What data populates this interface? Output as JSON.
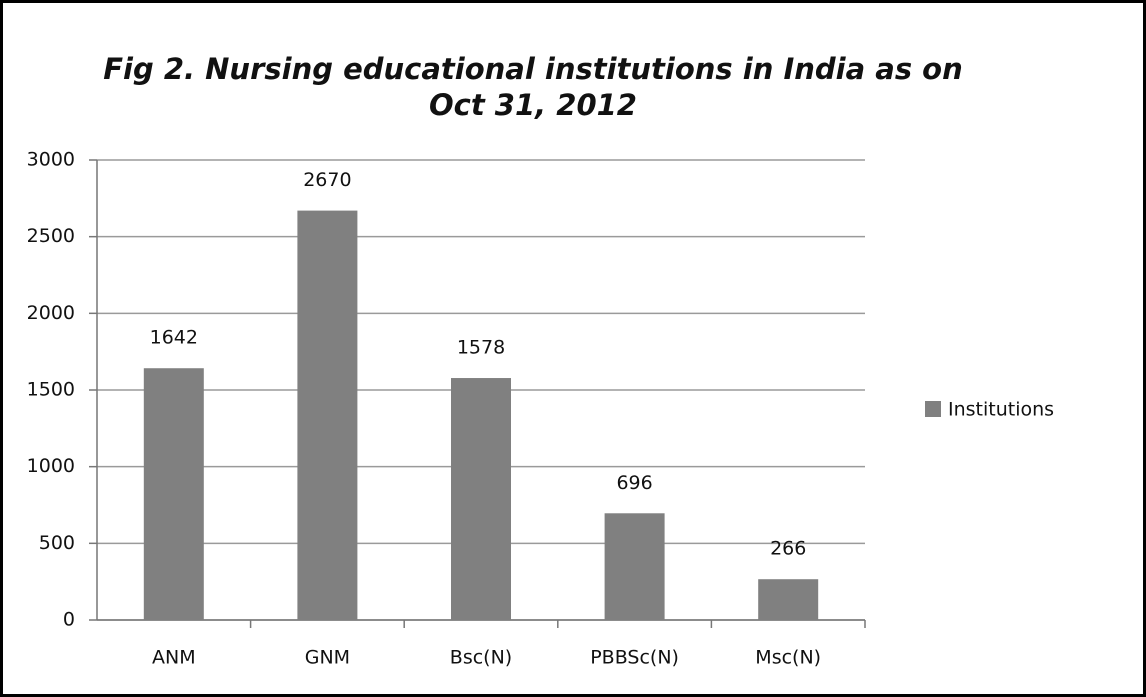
{
  "chart_data": {
    "type": "bar",
    "title": "Fig 2. Nursing educational institutions in India as on Oct 31, 2012",
    "categories": [
      "ANM",
      "GNM",
      "Bsc(N)",
      "PBBSc(N)",
      "Msc(N)"
    ],
    "series": [
      {
        "name": "Institutions",
        "color": "#808080",
        "values": [
          1642,
          2670,
          1578,
          696,
          266
        ]
      }
    ],
    "ylim": [
      0,
      3000
    ],
    "yticks": [
      0,
      500,
      1000,
      1500,
      2000,
      2500,
      3000
    ],
    "grid": true,
    "legend": "right"
  }
}
